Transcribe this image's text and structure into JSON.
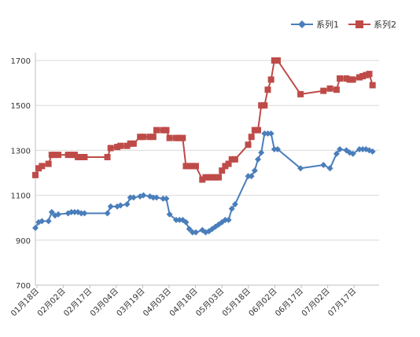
{
  "chart_data": {
    "type": "line",
    "title": "",
    "xlabel": "",
    "ylabel": "",
    "ylim": [
      700,
      1700
    ],
    "yticks": [
      "700",
      "900",
      "1100",
      "1300",
      "1500",
      "1700"
    ],
    "xticks": [
      "01月18日",
      "02月02日",
      "02月17日",
      "03月04日",
      "03月19日",
      "04月03日",
      "04月18日",
      "05月03日",
      "05月18日",
      "06月02日",
      "06月17日",
      "07月02日",
      "07月17日"
    ],
    "legend_position": "top-right",
    "grid": "horizontal",
    "series": [
      {
        "name": "系列1",
        "color": "#4a7ebb",
        "marker": "diamond",
        "x": [
          0,
          1,
          2,
          4,
          5,
          6,
          7,
          10,
          11,
          12,
          13,
          14,
          15,
          22,
          23,
          25,
          26,
          28,
          29,
          30,
          32,
          33,
          35,
          36,
          37,
          39,
          40,
          41,
          43,
          44,
          45,
          46,
          47,
          48,
          49,
          51,
          52,
          53,
          54,
          55,
          56,
          57,
          58,
          59,
          60,
          61,
          65,
          66,
          67,
          68,
          69,
          70,
          71,
          72,
          73,
          74,
          81,
          88,
          90,
          92,
          93,
          95,
          96,
          97,
          99,
          100,
          101,
          102,
          103
        ],
        "y": [
          955,
          980,
          985,
          985,
          1025,
          1010,
          1015,
          1020,
          1025,
          1025,
          1025,
          1020,
          1020,
          1020,
          1050,
          1050,
          1055,
          1060,
          1090,
          1090,
          1095,
          1100,
          1095,
          1090,
          1090,
          1085,
          1085,
          1015,
          990,
          990,
          990,
          980,
          950,
          935,
          935,
          945,
          935,
          940,
          950,
          960,
          970,
          980,
          990,
          990,
          1040,
          1060,
          1185,
          1185,
          1210,
          1260,
          1290,
          1375,
          1375,
          1375,
          1305,
          1305,
          1220,
          1235,
          1220,
          1285,
          1305,
          1300,
          1290,
          1285,
          1305,
          1305,
          1305,
          1300,
          1295
        ],
        "labels_dummy": 0
      },
      {
        "name": "系列2",
        "color": "#be4b48",
        "marker": "square",
        "x": [
          0,
          1,
          2,
          4,
          5,
          6,
          7,
          10,
          11,
          12,
          13,
          14,
          15,
          22,
          23,
          25,
          26,
          28,
          29,
          30,
          32,
          33,
          35,
          36,
          37,
          39,
          40,
          41,
          43,
          44,
          45,
          46,
          47,
          48,
          49,
          51,
          52,
          53,
          54,
          55,
          56,
          57,
          58,
          59,
          60,
          61,
          65,
          66,
          67,
          68,
          69,
          70,
          71,
          72,
          73,
          74,
          81,
          88,
          90,
          92,
          93,
          95,
          96,
          97,
          99,
          100,
          101,
          102,
          103
        ],
        "y": [
          1190,
          1220,
          1230,
          1240,
          1280,
          1280,
          1280,
          1280,
          1280,
          1280,
          1270,
          1270,
          1270,
          1270,
          1310,
          1315,
          1320,
          1320,
          1330,
          1330,
          1360,
          1360,
          1360,
          1360,
          1390,
          1390,
          1390,
          1355,
          1355,
          1355,
          1355,
          1230,
          1230,
          1230,
          1230,
          1170,
          1180,
          1180,
          1180,
          1180,
          1180,
          1210,
          1230,
          1240,
          1260,
          1260,
          1325,
          1360,
          1390,
          1390,
          1500,
          1500,
          1570,
          1615,
          1700,
          1700,
          1550,
          1565,
          1575,
          1570,
          1620,
          1620,
          1615,
          1615,
          1625,
          1630,
          1635,
          1640,
          1590
        ],
        "labels_dummy": 0
      }
    ]
  }
}
